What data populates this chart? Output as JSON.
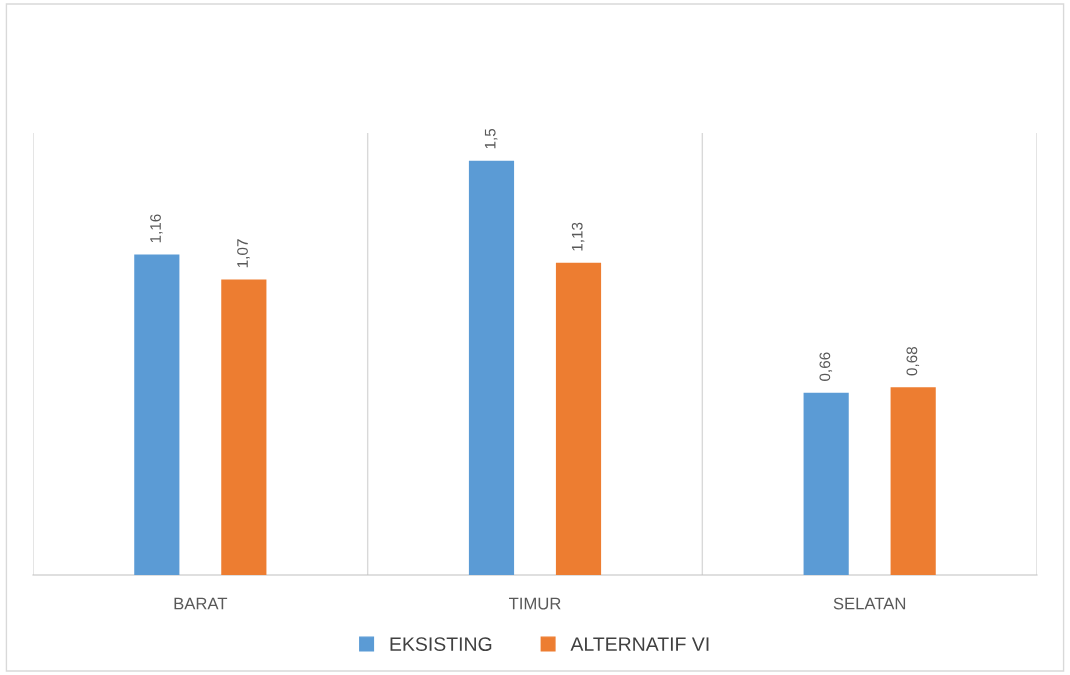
{
  "chart_data": {
    "type": "bar",
    "categories": [
      "BARAT",
      "TIMUR",
      "SELATAN"
    ],
    "series": [
      {
        "name": "EKSISTING",
        "color": "#5b9bd5",
        "values": [
          1.16,
          1.5,
          0.66
        ],
        "value_labels": [
          "1,16",
          "1,5",
          "0,66"
        ]
      },
      {
        "name": "ALTERNATIF VI",
        "color": "#ed7d31",
        "values": [
          1.07,
          1.13,
          0.68
        ],
        "value_labels": [
          "1,07",
          "1,13",
          "0,68"
        ]
      }
    ],
    "ylim": [
      0,
      1.6
    ],
    "tick_labels": "x",
    "grid": "x",
    "legend": "bottom"
  }
}
